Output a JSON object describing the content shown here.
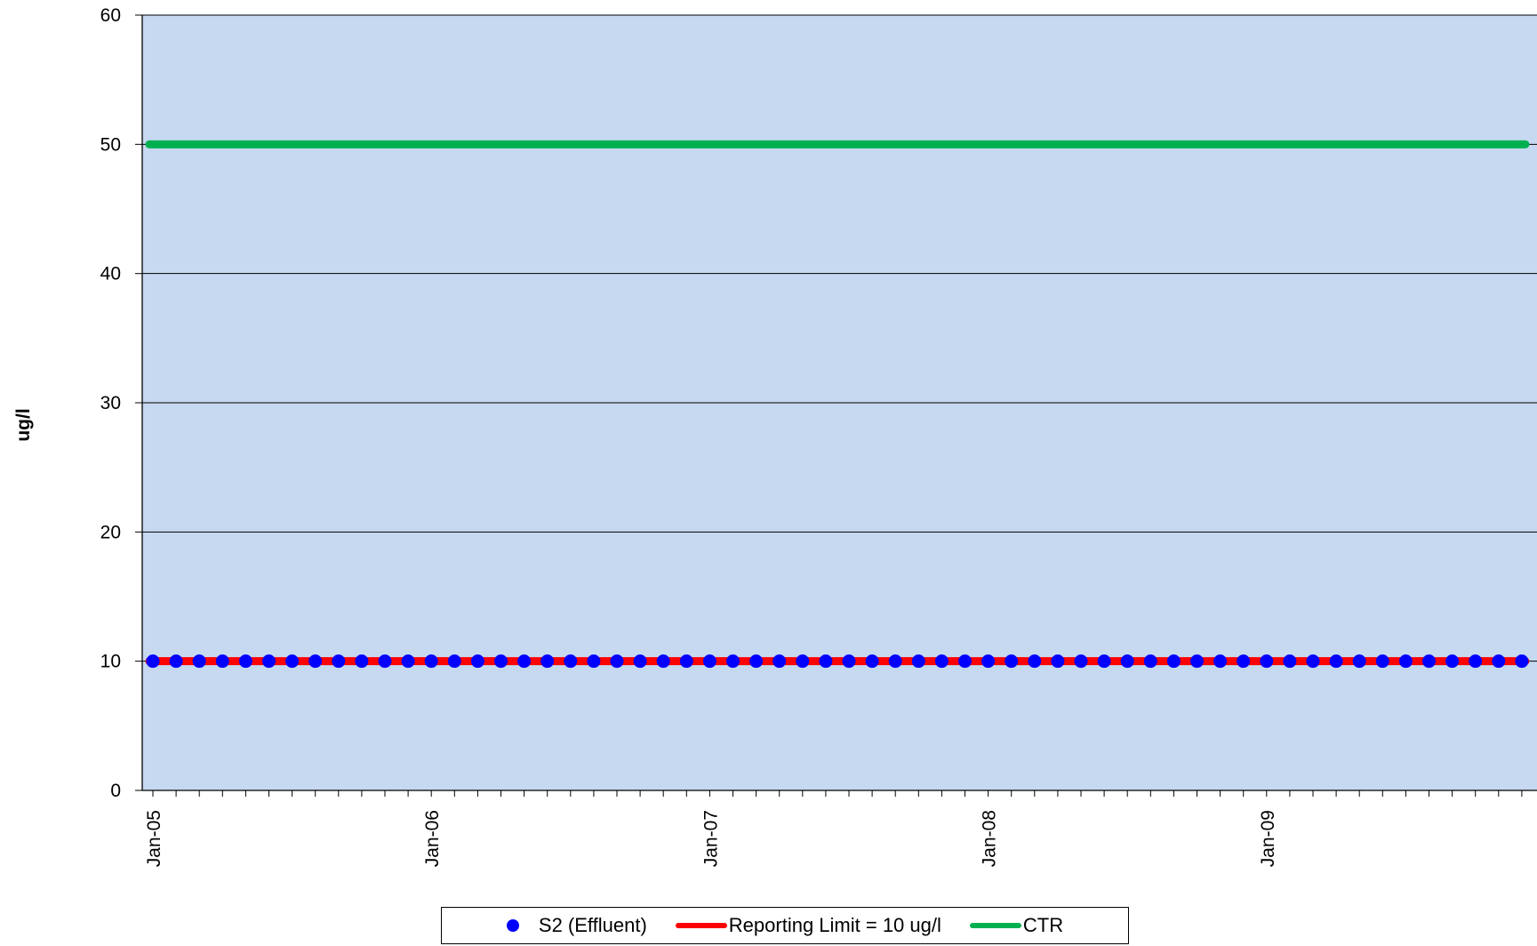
{
  "chart_data": {
    "type": "line",
    "title": "",
    "xlabel": "",
    "ylabel": "ug/l",
    "ylim": [
      0,
      60
    ],
    "yticks": [
      0,
      10,
      20,
      30,
      40,
      50,
      60
    ],
    "xlim": [
      "2005-01",
      "2009-12"
    ],
    "xtick_labels": [
      "Jan-05",
      "Jan-06",
      "Jan-07",
      "Jan-08",
      "Jan-09"
    ],
    "minor_ticks": "monthly",
    "grid": "horizontal",
    "legend_position": "bottom",
    "plot_background": "#c6d9f0",
    "series": [
      {
        "name": "S2 (Effluent)",
        "style": "markers",
        "color": "#0000ff",
        "x": [
          "2005-01",
          "2005-02",
          "2005-03",
          "2005-04",
          "2005-05",
          "2005-06",
          "2005-07",
          "2005-08",
          "2005-09",
          "2005-10",
          "2005-11",
          "2005-12",
          "2006-01",
          "2006-02",
          "2006-03",
          "2006-04",
          "2006-05",
          "2006-06",
          "2006-07",
          "2006-08",
          "2006-09",
          "2006-10",
          "2006-11",
          "2006-12",
          "2007-01",
          "2007-02",
          "2007-03",
          "2007-04",
          "2007-05",
          "2007-06",
          "2007-07",
          "2007-08",
          "2007-09",
          "2007-10",
          "2007-11",
          "2007-12",
          "2008-01",
          "2008-02",
          "2008-03",
          "2008-04",
          "2008-05",
          "2008-06",
          "2008-07",
          "2008-08",
          "2008-09",
          "2008-10",
          "2008-11",
          "2008-12",
          "2009-01",
          "2009-02",
          "2009-03",
          "2009-04",
          "2009-05",
          "2009-06",
          "2009-07",
          "2009-08",
          "2009-09",
          "2009-10",
          "2009-11",
          "2009-12"
        ],
        "y": [
          10,
          10,
          10,
          10,
          10,
          10,
          10,
          10,
          10,
          10,
          10,
          10,
          10,
          10,
          10,
          10,
          10,
          10,
          10,
          10,
          10,
          10,
          10,
          10,
          10,
          10,
          10,
          10,
          10,
          10,
          10,
          10,
          10,
          10,
          10,
          10,
          10,
          10,
          10,
          10,
          10,
          10,
          10,
          10,
          10,
          10,
          10,
          10,
          10,
          10,
          10,
          10,
          10,
          10,
          10,
          10,
          10,
          10,
          10,
          10
        ]
      },
      {
        "name": "Reporting Limit = 10 ug/l",
        "style": "line",
        "color": "#ff0000",
        "x": [
          "2005-01",
          "2009-12"
        ],
        "y": [
          10,
          10
        ]
      },
      {
        "name": "CTR",
        "style": "line",
        "color": "#00b050",
        "x": [
          "2005-01",
          "2009-12"
        ],
        "y": [
          50,
          50
        ]
      }
    ]
  }
}
